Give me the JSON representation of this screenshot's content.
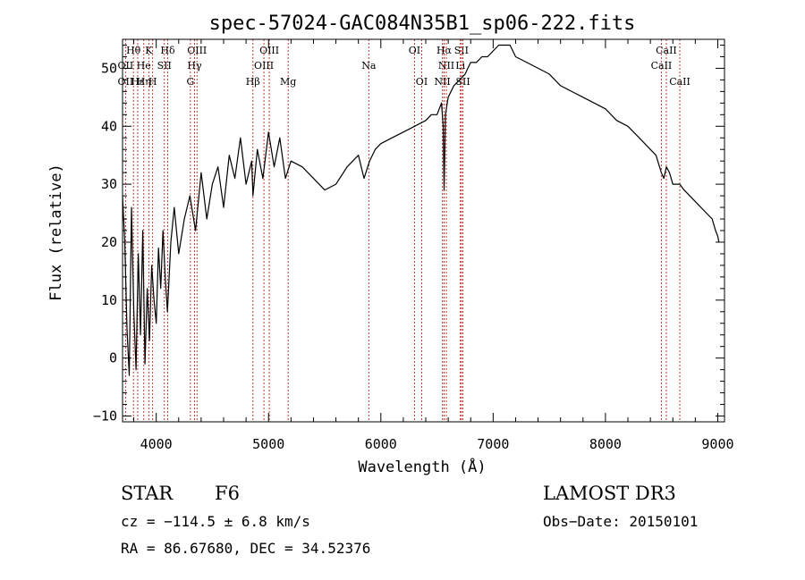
{
  "chart_data": {
    "type": "line",
    "title": "spec-57024-GAC084N35B1_sp06-222.fits",
    "xlabel": "Wavelength (Å)",
    "ylabel": "Flux (relative)",
    "xlim": [
      3700,
      9060
    ],
    "ylim": [
      -11,
      55
    ],
    "xticks": [
      4000,
      5000,
      6000,
      7000,
      8000,
      9000
    ],
    "yticks": [
      -10,
      0,
      10,
      20,
      30,
      40,
      50
    ],
    "grid": false,
    "series": [
      {
        "name": "flux",
        "x": [
          3700,
          3720,
          3740,
          3760,
          3780,
          3800,
          3820,
          3840,
          3860,
          3880,
          3900,
          3920,
          3940,
          3960,
          3980,
          4000,
          4020,
          4040,
          4060,
          4080,
          4100,
          4130,
          4160,
          4200,
          4250,
          4300,
          4350,
          4400,
          4450,
          4500,
          4550,
          4600,
          4650,
          4700,
          4750,
          4800,
          4850,
          4861,
          4900,
          4950,
          5000,
          5050,
          5100,
          5150,
          5200,
          5300,
          5400,
          5500,
          5600,
          5700,
          5800,
          5850,
          5900,
          5950,
          6000,
          6100,
          6200,
          6300,
          6400,
          6450,
          6500,
          6540,
          6555,
          6563,
          6575,
          6600,
          6650,
          6700,
          6750,
          6800,
          6850,
          6900,
          6950,
          7000,
          7050,
          7100,
          7150,
          7200,
          7300,
          7400,
          7500,
          7600,
          7700,
          7800,
          7900,
          8000,
          8100,
          8200,
          8300,
          8400,
          8450,
          8498,
          8520,
          8542,
          8570,
          8600,
          8662,
          8700,
          8800,
          8900,
          8950,
          8980,
          9000,
          9010
        ],
        "values": [
          28,
          20,
          5,
          -3,
          26,
          8,
          -2,
          18,
          4,
          22,
          -1,
          12,
          3,
          16,
          10,
          6,
          19,
          12,
          22,
          14,
          8,
          20,
          26,
          18,
          24,
          28,
          22,
          32,
          24,
          30,
          33,
          26,
          35,
          31,
          38,
          30,
          34,
          28,
          36,
          31,
          39,
          33,
          38,
          31,
          34,
          33,
          31,
          29,
          30,
          33,
          35,
          31,
          34,
          36,
          37,
          38,
          39,
          40,
          41,
          42,
          42,
          44,
          40,
          29,
          42,
          45,
          47,
          48,
          49,
          51,
          51,
          52,
          52,
          53,
          54,
          54,
          54,
          52,
          51,
          50,
          49,
          47,
          46,
          45,
          44,
          43,
          41,
          40,
          38,
          36,
          35,
          32,
          31,
          33,
          32,
          30,
          30,
          29,
          27,
          25,
          24,
          22,
          21,
          20
        ]
      }
    ],
    "lines_top": [
      {
        "label": "Hθ",
        "x": 3797
      },
      {
        "label": "K",
        "x": 3934
      },
      {
        "label": "Hδ",
        "x": 4102
      },
      {
        "label": "OIII",
        "x": 4363
      },
      {
        "label": "OIII",
        "x": 5007
      },
      {
        "label": "OI",
        "x": 6300
      },
      {
        "label": "Hα",
        "x": 6563
      },
      {
        "label": "SII",
        "x": 6717
      },
      {
        "label": "CaII",
        "x": 8542
      }
    ],
    "lines_mid": [
      {
        "label": "OII",
        "x": 3727
      },
      {
        "label": "He",
        "x": 3889
      },
      {
        "label": "SII",
        "x": 4072
      },
      {
        "label": "Hγ",
        "x": 4341
      },
      {
        "label": "OIII",
        "x": 4959
      },
      {
        "label": "Na",
        "x": 5893
      },
      {
        "label": "NII",
        "x": 6583
      },
      {
        "label": "Li",
        "x": 6708
      },
      {
        "label": "CaII",
        "x": 8498
      }
    ],
    "lines_low": [
      {
        "label": "OII",
        "x": 3727
      },
      {
        "label": "Hε",
        "x": 3835
      },
      {
        "label": "Hη",
        "x": 3889
      },
      {
        "label": "H",
        "x": 3968
      },
      {
        "label": "G",
        "x": 4304
      },
      {
        "label": "Hβ",
        "x": 4861
      },
      {
        "label": "Mg",
        "x": 5175
      },
      {
        "label": "OI",
        "x": 6364
      },
      {
        "label": "NII",
        "x": 6548
      },
      {
        "label": "SII",
        "x": 6731
      },
      {
        "label": "CaII",
        "x": 8662
      }
    ]
  },
  "info": {
    "object_class": "STAR",
    "subclass": "F6",
    "survey": "LAMOST DR3",
    "cz": "cz = −114.5 ± 6.8 km/s",
    "obs_date": "Obs−Date: 20150101",
    "coords": "RA =  86.67680, DEC =  34.52376"
  }
}
